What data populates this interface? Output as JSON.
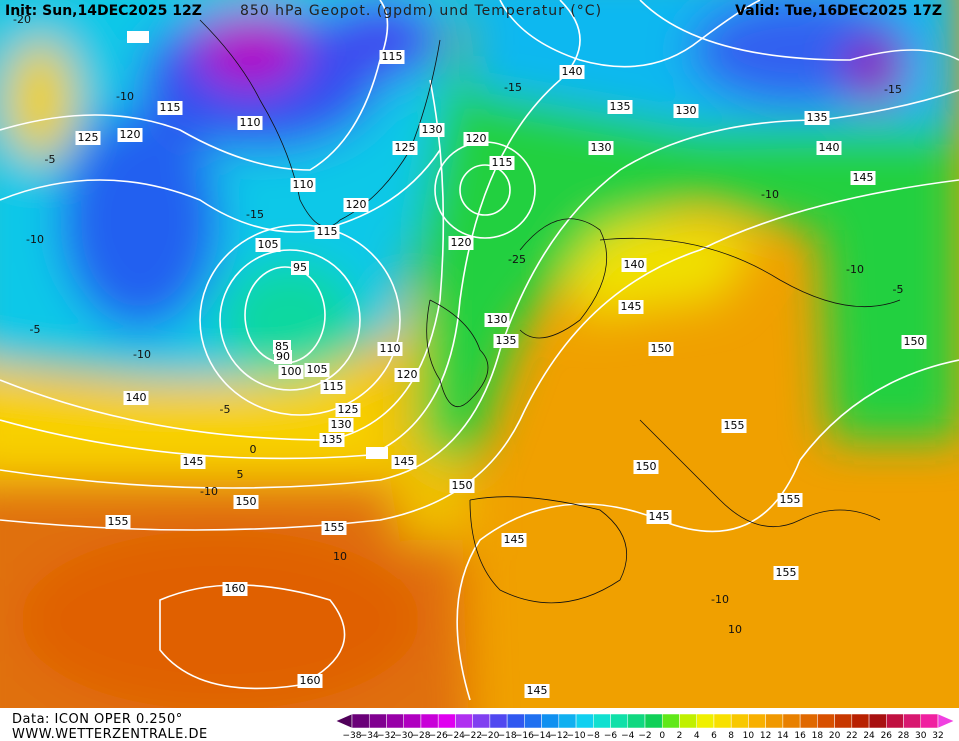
{
  "header": {
    "init": "Init: Sun,14DEC2025 12Z",
    "title": "850 hPa Geopot. (gpdm) und Temperatur (°C)",
    "valid": "Valid: Tue,16DEC2025 17Z"
  },
  "footer": {
    "source": "Data: ICON OPER 0.250°",
    "website": "WWW.WETTERZENTRALE.DE"
  },
  "legend": {
    "labels": [
      "−38",
      "−34",
      "−32",
      "−30",
      "−28",
      "−26",
      "−24",
      "−22",
      "−20",
      "−18",
      "−16",
      "−14",
      "−12",
      "−10",
      "−8",
      "−6",
      "−4",
      "−2",
      "0",
      "2",
      "4",
      "6",
      "8",
      "10",
      "12",
      "14",
      "16",
      "18",
      "20",
      "22",
      "24",
      "26",
      "28",
      "30",
      "32"
    ],
    "colors": [
      "#50005a",
      "#6a0078",
      "#800090",
      "#9800a8",
      "#b000c0",
      "#c800d8",
      "#e000f0",
      "#b030f0",
      "#8040f0",
      "#5048f0",
      "#3058f0",
      "#2070f0",
      "#1090f0",
      "#10b0f0",
      "#10d0f0",
      "#10e0d0",
      "#10e0a8",
      "#10d880",
      "#10d058",
      "#60e818",
      "#c0f000",
      "#f0f000",
      "#f8e000",
      "#f8c800",
      "#f8b000",
      "#f09800",
      "#e88000",
      "#e06800",
      "#d85000",
      "#c83800",
      "#b82000",
      "#a81010",
      "#c01040",
      "#d81870",
      "#f020a0",
      "#f040e0"
    ]
  },
  "map": {
    "geopotential_labels": [
      "115",
      "110",
      "115",
      "120",
      "125",
      "130",
      "120",
      "125",
      "130",
      "140",
      "135",
      "130",
      "135",
      "140",
      "145",
      "115",
      "110",
      "120",
      "115",
      "105",
      "120",
      "95",
      "140",
      "145",
      "130",
      "135",
      "150",
      "150",
      "85",
      "90",
      "110",
      "100",
      "105",
      "120",
      "115",
      "140",
      "125",
      "130",
      "135",
      "155",
      "145",
      "145",
      "150",
      "150",
      "155",
      "150",
      "155",
      "155",
      "145",
      "145",
      "155",
      "160",
      "160",
      "145"
    ],
    "temperature_labels": [
      "-10",
      "-5",
      "-15",
      "-10",
      "-5",
      "-10",
      "-5",
      "0",
      "5",
      "-10",
      "-15",
      "-10",
      "-10",
      "-5",
      "-25",
      "-20",
      "10",
      "10",
      "-15",
      "-10"
    ]
  }
}
